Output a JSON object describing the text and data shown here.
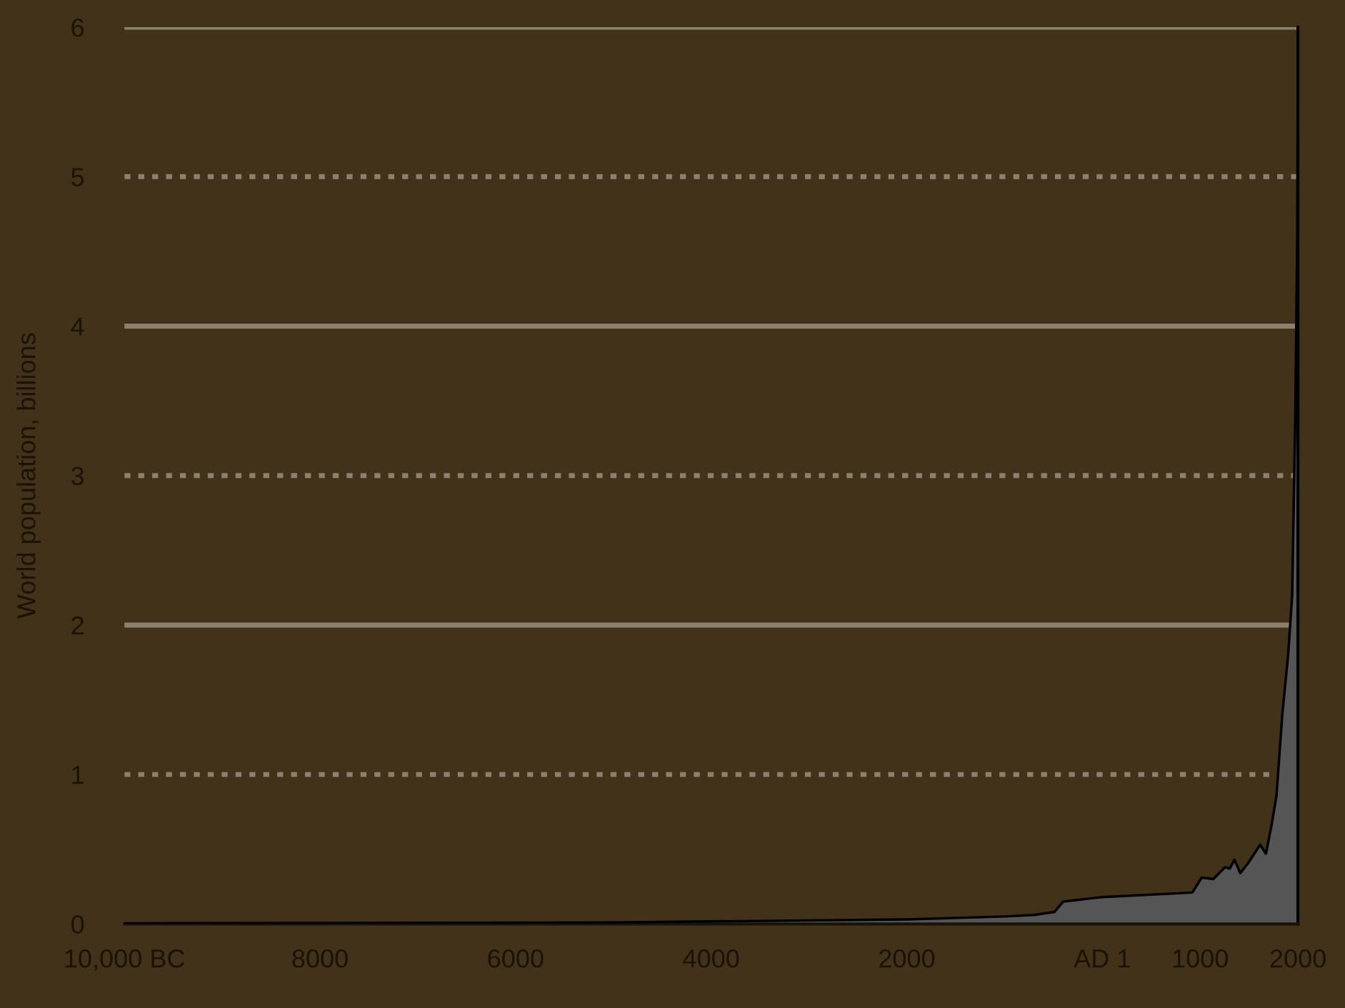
{
  "chart_data": {
    "type": "area",
    "ylabel": "World population, billions",
    "x": [
      -10000,
      -5000,
      -2000,
      -1000,
      -700,
      -490,
      -400,
      0,
      920,
      1016,
      1135,
      1255,
      1303,
      1351,
      1411,
      1494,
      1614,
      1673,
      1733,
      1781,
      1840,
      1900,
      1941,
      1973,
      1993,
      2000
    ],
    "series": [
      {
        "color": "#555555",
        "values": [
          0.004,
          0.01,
          0.03,
          0.05,
          0.06,
          0.08,
          0.15,
          0.18,
          0.21,
          0.31,
          0.3,
          0.38,
          0.37,
          0.43,
          0.34,
          0.41,
          0.53,
          0.47,
          0.67,
          0.86,
          1.4,
          1.8,
          2.2,
          3.4,
          4.6,
          6.0
        ]
      }
    ],
    "xlim": [
      -10000,
      2000
    ],
    "xticks": [
      {
        "value": -10000,
        "label": "10,000 BC"
      },
      {
        "value": -8000,
        "label": "8000"
      },
      {
        "value": -6000,
        "label": "6000"
      },
      {
        "value": -4000,
        "label": "4000"
      },
      {
        "value": -2000,
        "label": "2000"
      },
      {
        "value": 0,
        "label": "AD 1"
      },
      {
        "value": 1000,
        "label": "1000"
      },
      {
        "value": 2000,
        "label": "2000"
      }
    ],
    "ylim": [
      0,
      6
    ],
    "yticks": [
      0,
      1,
      2,
      3,
      4,
      5,
      6
    ],
    "grid": "y"
  }
}
